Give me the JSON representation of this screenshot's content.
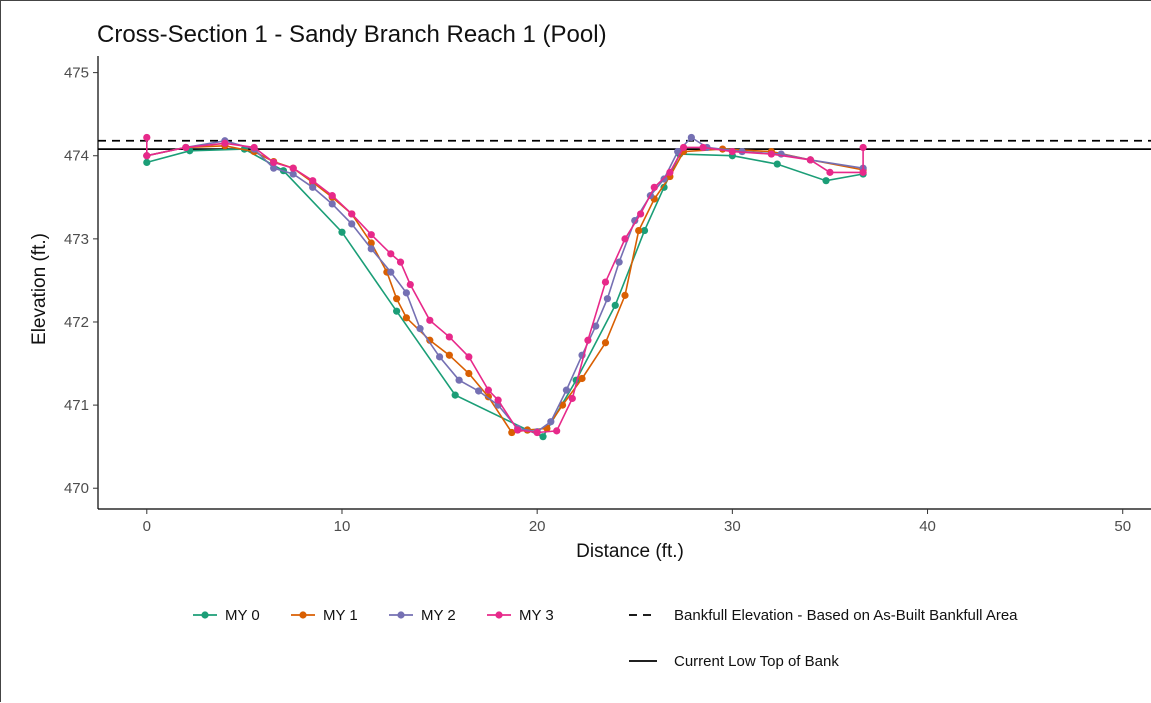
{
  "chart_data": {
    "type": "line",
    "title": "Cross-Section 1 - Sandy Branch Reach 1 (Pool)",
    "xlabel": "Distance (ft.)",
    "ylabel": "Elevation (ft.)",
    "xlim": [
      -2.5,
      51.5
    ],
    "ylim": [
      469.75,
      475.2
    ],
    "xticks": [
      0,
      10,
      20,
      30,
      40,
      50
    ],
    "yticks": [
      470,
      471,
      472,
      473,
      474,
      475
    ],
    "grid": false,
    "legend_position": "bottom",
    "series": [
      {
        "name": "MY 0",
        "color": "#1b9e77",
        "x": [
          0,
          2.2,
          5.0,
          7.0,
          10.0,
          12.8,
          15.8,
          19.5,
          20.3,
          22.0,
          24.0,
          25.5,
          26.5,
          27.3,
          30.0,
          32.3,
          34.8,
          36.7
        ],
        "y": [
          473.92,
          474.06,
          474.08,
          473.82,
          473.08,
          472.13,
          471.12,
          470.7,
          470.62,
          471.3,
          472.2,
          473.1,
          473.62,
          474.02,
          474.0,
          473.9,
          473.7,
          473.78
        ]
      },
      {
        "name": "MY 1",
        "color": "#d95f02",
        "x": [
          0,
          2,
          4,
          5.5,
          6.5,
          7.5,
          8.5,
          9.5,
          10.5,
          11.5,
          12.3,
          12.8,
          13.3,
          14.5,
          15.5,
          16.5,
          17.5,
          18.7,
          19.5,
          20.5,
          21.3,
          22.3,
          23.5,
          24.5,
          25.2,
          26.0,
          26.8,
          27.5,
          29.5,
          32.0,
          34.0,
          36.7
        ],
        "y": [
          474.0,
          474.1,
          474.12,
          474.05,
          473.93,
          473.85,
          473.68,
          473.5,
          473.3,
          472.95,
          472.6,
          472.28,
          472.05,
          471.78,
          471.6,
          471.38,
          471.1,
          470.67,
          470.7,
          470.72,
          471.0,
          471.32,
          471.75,
          472.32,
          473.1,
          473.48,
          473.75,
          474.05,
          474.08,
          474.05,
          473.95,
          473.83
        ]
      },
      {
        "name": "MY 2",
        "color": "#7570b3",
        "x": [
          0,
          2,
          4.0,
          5.5,
          6.5,
          7.5,
          8.5,
          9.5,
          10.5,
          11.5,
          12.5,
          13.3,
          14.0,
          15.0,
          16.0,
          17.0,
          18.0,
          19.0,
          20.0,
          20.7,
          21.5,
          22.3,
          23.0,
          23.6,
          24.2,
          25.0,
          25.8,
          26.5,
          27.2,
          27.9,
          28.7,
          30.5,
          32.5,
          34.0,
          36.7
        ],
        "y": [
          474.0,
          474.1,
          474.18,
          474.08,
          473.85,
          473.78,
          473.62,
          473.42,
          473.18,
          472.88,
          472.6,
          472.35,
          471.92,
          471.58,
          471.3,
          471.17,
          471.0,
          470.72,
          470.68,
          470.8,
          471.18,
          471.6,
          471.95,
          472.28,
          472.72,
          473.22,
          473.52,
          473.72,
          474.05,
          474.22,
          474.1,
          474.05,
          474.02,
          473.95,
          473.85
        ]
      },
      {
        "name": "MY 3",
        "color": "#e7298a",
        "x": [
          0,
          0,
          2,
          4,
          5.5,
          6.5,
          7.5,
          8.5,
          9.5,
          10.5,
          11.5,
          12.5,
          13.0,
          13.5,
          14.5,
          15.5,
          16.5,
          17.5,
          18.0,
          19.0,
          20.0,
          21.0,
          21.8,
          22.6,
          23.5,
          24.5,
          25.3,
          26.0,
          26.8,
          27.5,
          28.5,
          30.0,
          32.0,
          34.0,
          35.0,
          36.7,
          36.7
        ],
        "y": [
          474.22,
          474.0,
          474.1,
          474.15,
          474.1,
          473.92,
          473.85,
          473.7,
          473.52,
          473.3,
          473.05,
          472.82,
          472.72,
          472.45,
          472.02,
          471.82,
          471.58,
          471.18,
          471.06,
          470.7,
          470.67,
          470.69,
          471.08,
          471.78,
          472.48,
          473.0,
          473.3,
          473.62,
          473.8,
          474.1,
          474.1,
          474.05,
          474.02,
          473.95,
          473.8,
          473.8,
          474.1
        ]
      }
    ],
    "reference_lines": [
      {
        "name": "Bankfull Elevation - Based on As-Built Bankfull Area",
        "y": 474.18,
        "style": "dashed",
        "color": "#000000"
      },
      {
        "name": "Current Low Top of Bank",
        "y": 474.08,
        "style": "solid",
        "color": "#000000"
      }
    ]
  }
}
